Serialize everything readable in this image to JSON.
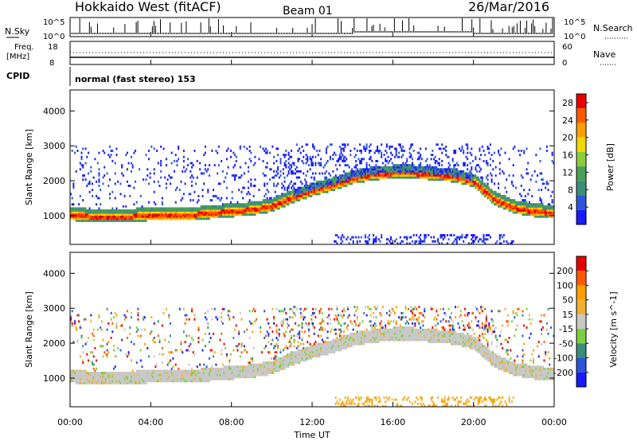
{
  "header": {
    "title": "Hokkaido West (fitACF)",
    "beam": "Beam 01",
    "date": "26/Mar/2016"
  },
  "side_labels": {
    "nsky": "N.Sky",
    "nsky_top": "10^5",
    "nsky_bottom": "10^0",
    "nsearch": "N.Search",
    "nsearch_top": "10^5",
    "nsearch_bottom": "10^0",
    "freq_label_1": "Freq.",
    "freq_label_2": "[MHz]",
    "freq_top": "18",
    "freq_bottom": "8",
    "nave_label": "Nave",
    "nave_top": "60",
    "nave_bottom": "0",
    "cpid_label": "CPID",
    "cpid_value": "normal (fast stereo) 153"
  },
  "colors": {
    "power": [
      "#1a1aff",
      "#2b55d8",
      "#3c8c7a",
      "#4a9e58",
      "#8ccc3c",
      "#f0d800",
      "#ffa000",
      "#ff5a00",
      "#e80000"
    ],
    "velocity": [
      "#1a1aff",
      "#2b55d8",
      "#3c8c7a",
      "#7ad040",
      "#c8c8c8",
      "#f0b030",
      "#ffa000",
      "#ff5a00",
      "#e80000"
    ]
  },
  "chart_data": [
    {
      "type": "heatmap",
      "title": "",
      "xlabel": "Time UT",
      "ylabel": "Slant Range [km]",
      "x_ticks": [
        "00:00",
        "04:00",
        "08:00",
        "12:00",
        "16:00",
        "20:00",
        "00:00"
      ],
      "y_ticks": [
        "1000",
        "2000",
        "3000",
        "4000"
      ],
      "ylim": [
        180,
        4600
      ],
      "colorbar": {
        "label": "Power [dB]",
        "ticks": [
          "4",
          "8",
          "12",
          "16",
          "20",
          "24",
          "28"
        ],
        "range": [
          0,
          30
        ]
      },
      "x": [
        0,
        1,
        2,
        3,
        4,
        5,
        6,
        7,
        8,
        9,
        10,
        11,
        12,
        13,
        14,
        15,
        16,
        17,
        18,
        19,
        20,
        21,
        22,
        23,
        24
      ],
      "echo_center_km": [
        1050,
        1000,
        1000,
        1000,
        1050,
        1050,
        1050,
        1100,
        1150,
        1200,
        1300,
        1550,
        1750,
        1900,
        2100,
        2200,
        2250,
        2250,
        2200,
        2150,
        2000,
        1500,
        1250,
        1150,
        1100
      ]
    },
    {
      "type": "heatmap",
      "title": "",
      "xlabel": "Time UT",
      "ylabel": "Slant Range [km]",
      "x_ticks": [
        "00:00",
        "04:00",
        "08:00",
        "12:00",
        "16:00",
        "20:00",
        "00:00"
      ],
      "y_ticks": [
        "1000",
        "2000",
        "3000",
        "4000"
      ],
      "ylim": [
        180,
        4600
      ],
      "colorbar": {
        "label": "Velocity [m s^-1]",
        "ticks": [
          "200",
          "100",
          "50",
          "15",
          "-15",
          "-50",
          "-100",
          "-200"
        ]
      }
    }
  ]
}
